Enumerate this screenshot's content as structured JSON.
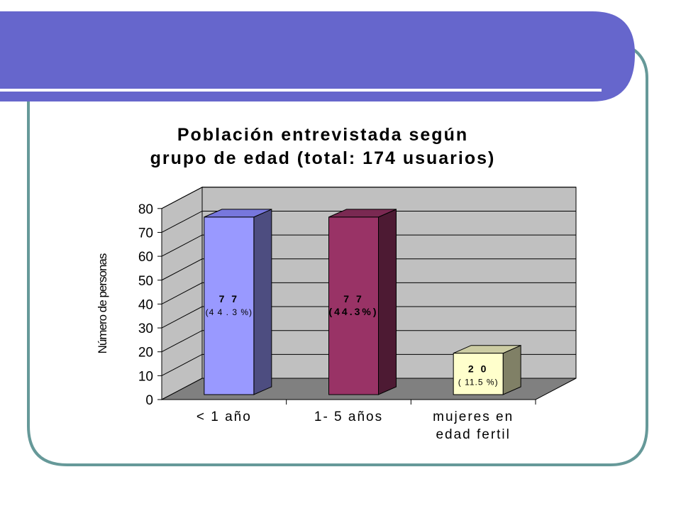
{
  "colors": {
    "banner": "#6666cc",
    "frame": "#669999",
    "wall": "#c0c0c0",
    "floor": "#808080",
    "bar1_front": "#9999ff",
    "bar1_top": "#7777dd",
    "bar1_side": "#4d4d80",
    "bar2_front": "#993366",
    "bar2_top": "#7a2952",
    "bar2_side": "#4d1a33",
    "bar3_front": "#ffffcc",
    "bar3_top": "#cccca3",
    "bar3_side": "#808066"
  },
  "chart_data": {
    "type": "bar",
    "title": [
      "Población entrevistada según",
      "grupo de edad (total: 174 usuarios)"
    ],
    "ylabel": "Número de personas",
    "xlabel": "",
    "ylim": [
      0,
      80
    ],
    "yticks": [
      "0",
      "10",
      "20",
      "30",
      "40",
      "50",
      "60",
      "70",
      "80"
    ],
    "grid": true,
    "categories": [
      [
        "< 1 año"
      ],
      [
        "1- 5 años"
      ],
      [
        "mujeres en",
        "edad fertil"
      ]
    ],
    "values": [
      77,
      77,
      20
    ],
    "value_labels": [
      "7 7",
      "7 7",
      "2 0"
    ],
    "percent_labels": [
      "(4 4 . 3 %)",
      "(44.3%)",
      "( 11.5 %)"
    ]
  }
}
